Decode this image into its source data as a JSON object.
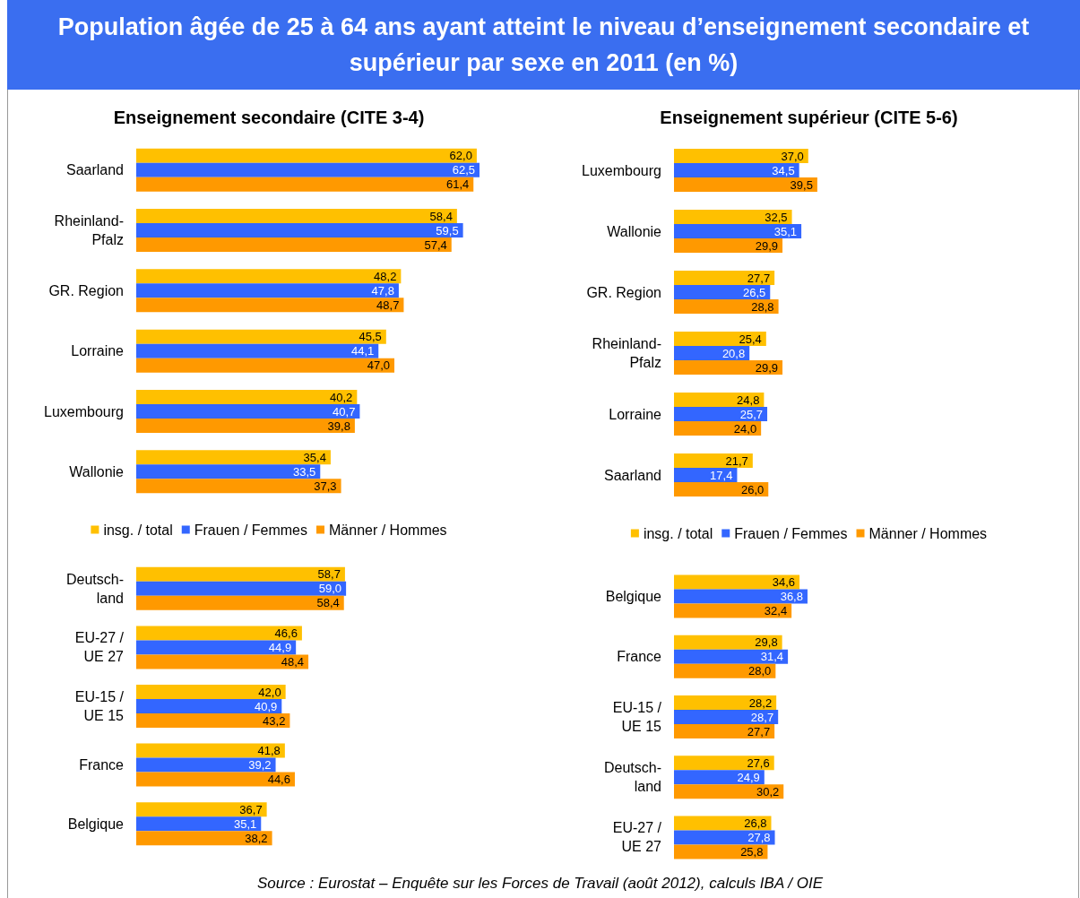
{
  "chart_data": [
    {
      "type": "bar",
      "orientation": "horizontal",
      "title": "Enseignement secondaire (CITE 3-4)",
      "annotations": [
        "Population âgée de 25 à 64 ans ayant atteint le niveau d’enseignement secondaire et supérieur par sexe en 2011 (en %)"
      ],
      "categories": [
        "Saarland",
        "Rheinland-\nPfalz",
        "GR. Region",
        "Lorraine",
        "Luxembourg",
        "Wallonie"
      ],
      "legend": "bottom",
      "series": [
        {
          "name": "insg. / total",
          "color": "#ffc000",
          "values": [
            62.0,
            58.4,
            48.2,
            45.5,
            40.2,
            35.4
          ],
          "value_labels": [
            "62,0",
            "58,4",
            "48,2",
            "45,5",
            "40,2",
            "35,4"
          ]
        },
        {
          "name": "Frauen / Femmes",
          "color": "#3366ff",
          "values": [
            62.5,
            59.5,
            47.8,
            44.1,
            40.7,
            33.5
          ],
          "value_labels": [
            "62,5",
            "59,5",
            "47,8",
            "44,1",
            "40,7",
            "33,5"
          ]
        },
        {
          "name": "Männer / Hommes",
          "color": "#ff9900",
          "values": [
            61.4,
            57.4,
            48.7,
            47.0,
            39.8,
            37.3
          ],
          "value_labels": [
            "61,4",
            "57,4",
            "48,7",
            "47,0",
            "39,8",
            "37,3"
          ]
        }
      ]
    },
    {
      "type": "bar",
      "orientation": "horizontal",
      "categories": [
        "Deutsch-\nland",
        "EU-27 /\nUE 27",
        "EU-15 /\nUE 15",
        "France",
        "Belgique"
      ],
      "series": [
        {
          "color": "#ffc000",
          "values": [
            58.7,
            46.6,
            42.0,
            41.8,
            36.7
          ],
          "value_labels": [
            "58,7",
            "46,6",
            "42,0",
            "41,8",
            "36,7"
          ]
        },
        {
          "color": "#3366ff",
          "values": [
            59.0,
            44.9,
            40.9,
            39.2,
            35.1
          ],
          "value_labels": [
            "59,0",
            "44,9",
            "40,9",
            "39,2",
            "35,1"
          ]
        },
        {
          "color": "#ff9900",
          "values": [
            58.4,
            48.4,
            43.2,
            44.6,
            38.2
          ],
          "value_labels": [
            "58,4",
            "48,4",
            "43,2",
            "44,6",
            "38,2"
          ]
        }
      ]
    },
    {
      "type": "bar",
      "orientation": "horizontal",
      "title": "Enseignement supérieur (CITE 5-6)",
      "categories": [
        "Luxembourg",
        "Wallonie",
        "GR. Region",
        "Rheinland-\nPfalz",
        "Lorraine",
        "Saarland"
      ],
      "legend": "bottom",
      "series": [
        {
          "name": "insg. / total",
          "color": "#ffc000",
          "values": [
            37.0,
            32.5,
            27.7,
            25.4,
            24.8,
            21.7
          ],
          "value_labels": [
            "37,0",
            "32,5",
            "27,7",
            "25,4",
            "24,8",
            "21,7"
          ]
        },
        {
          "name": "Frauen / Femmes",
          "color": "#3366ff",
          "values": [
            34.5,
            35.1,
            26.5,
            20.8,
            25.7,
            17.4
          ],
          "value_labels": [
            "34,5",
            "35,1",
            "26,5",
            "20,8",
            "25,7",
            "17,4"
          ]
        },
        {
          "name": "Männer / Hommes",
          "color": "#ff9900",
          "values": [
            39.5,
            29.9,
            28.8,
            29.9,
            24.0,
            26.0
          ],
          "value_labels": [
            "39,5",
            "29,9",
            "28,8",
            "29,9",
            "24,0",
            "26,0"
          ]
        }
      ]
    },
    {
      "type": "bar",
      "orientation": "horizontal",
      "annotations": [
        "Source : Eurostat – Enquête sur les Forces de Travail (août 2012), calculs IBA / OIE"
      ],
      "categories": [
        "Belgique",
        "France",
        "EU-15 /\nUE 15",
        "Deutsch-\nland",
        "EU-27 /\nUE 27"
      ],
      "series": [
        {
          "color": "#ffc000",
          "values": [
            34.6,
            29.8,
            28.2,
            27.6,
            26.8
          ],
          "value_labels": [
            "34,6",
            "29,8",
            "28,2",
            "27,6",
            "26,8"
          ]
        },
        {
          "color": "#3366ff",
          "values": [
            36.8,
            31.4,
            28.7,
            24.9,
            27.8
          ],
          "value_labels": [
            "36,8",
            "31,4",
            "28,7",
            "24,9",
            "27,8"
          ]
        },
        {
          "color": "#ff9900",
          "values": [
            32.4,
            28.0,
            27.7,
            30.2,
            25.8
          ],
          "value_labels": [
            "32,4",
            "28,0",
            "27,7",
            "30,2",
            "25,8"
          ]
        }
      ]
    }
  ]
}
